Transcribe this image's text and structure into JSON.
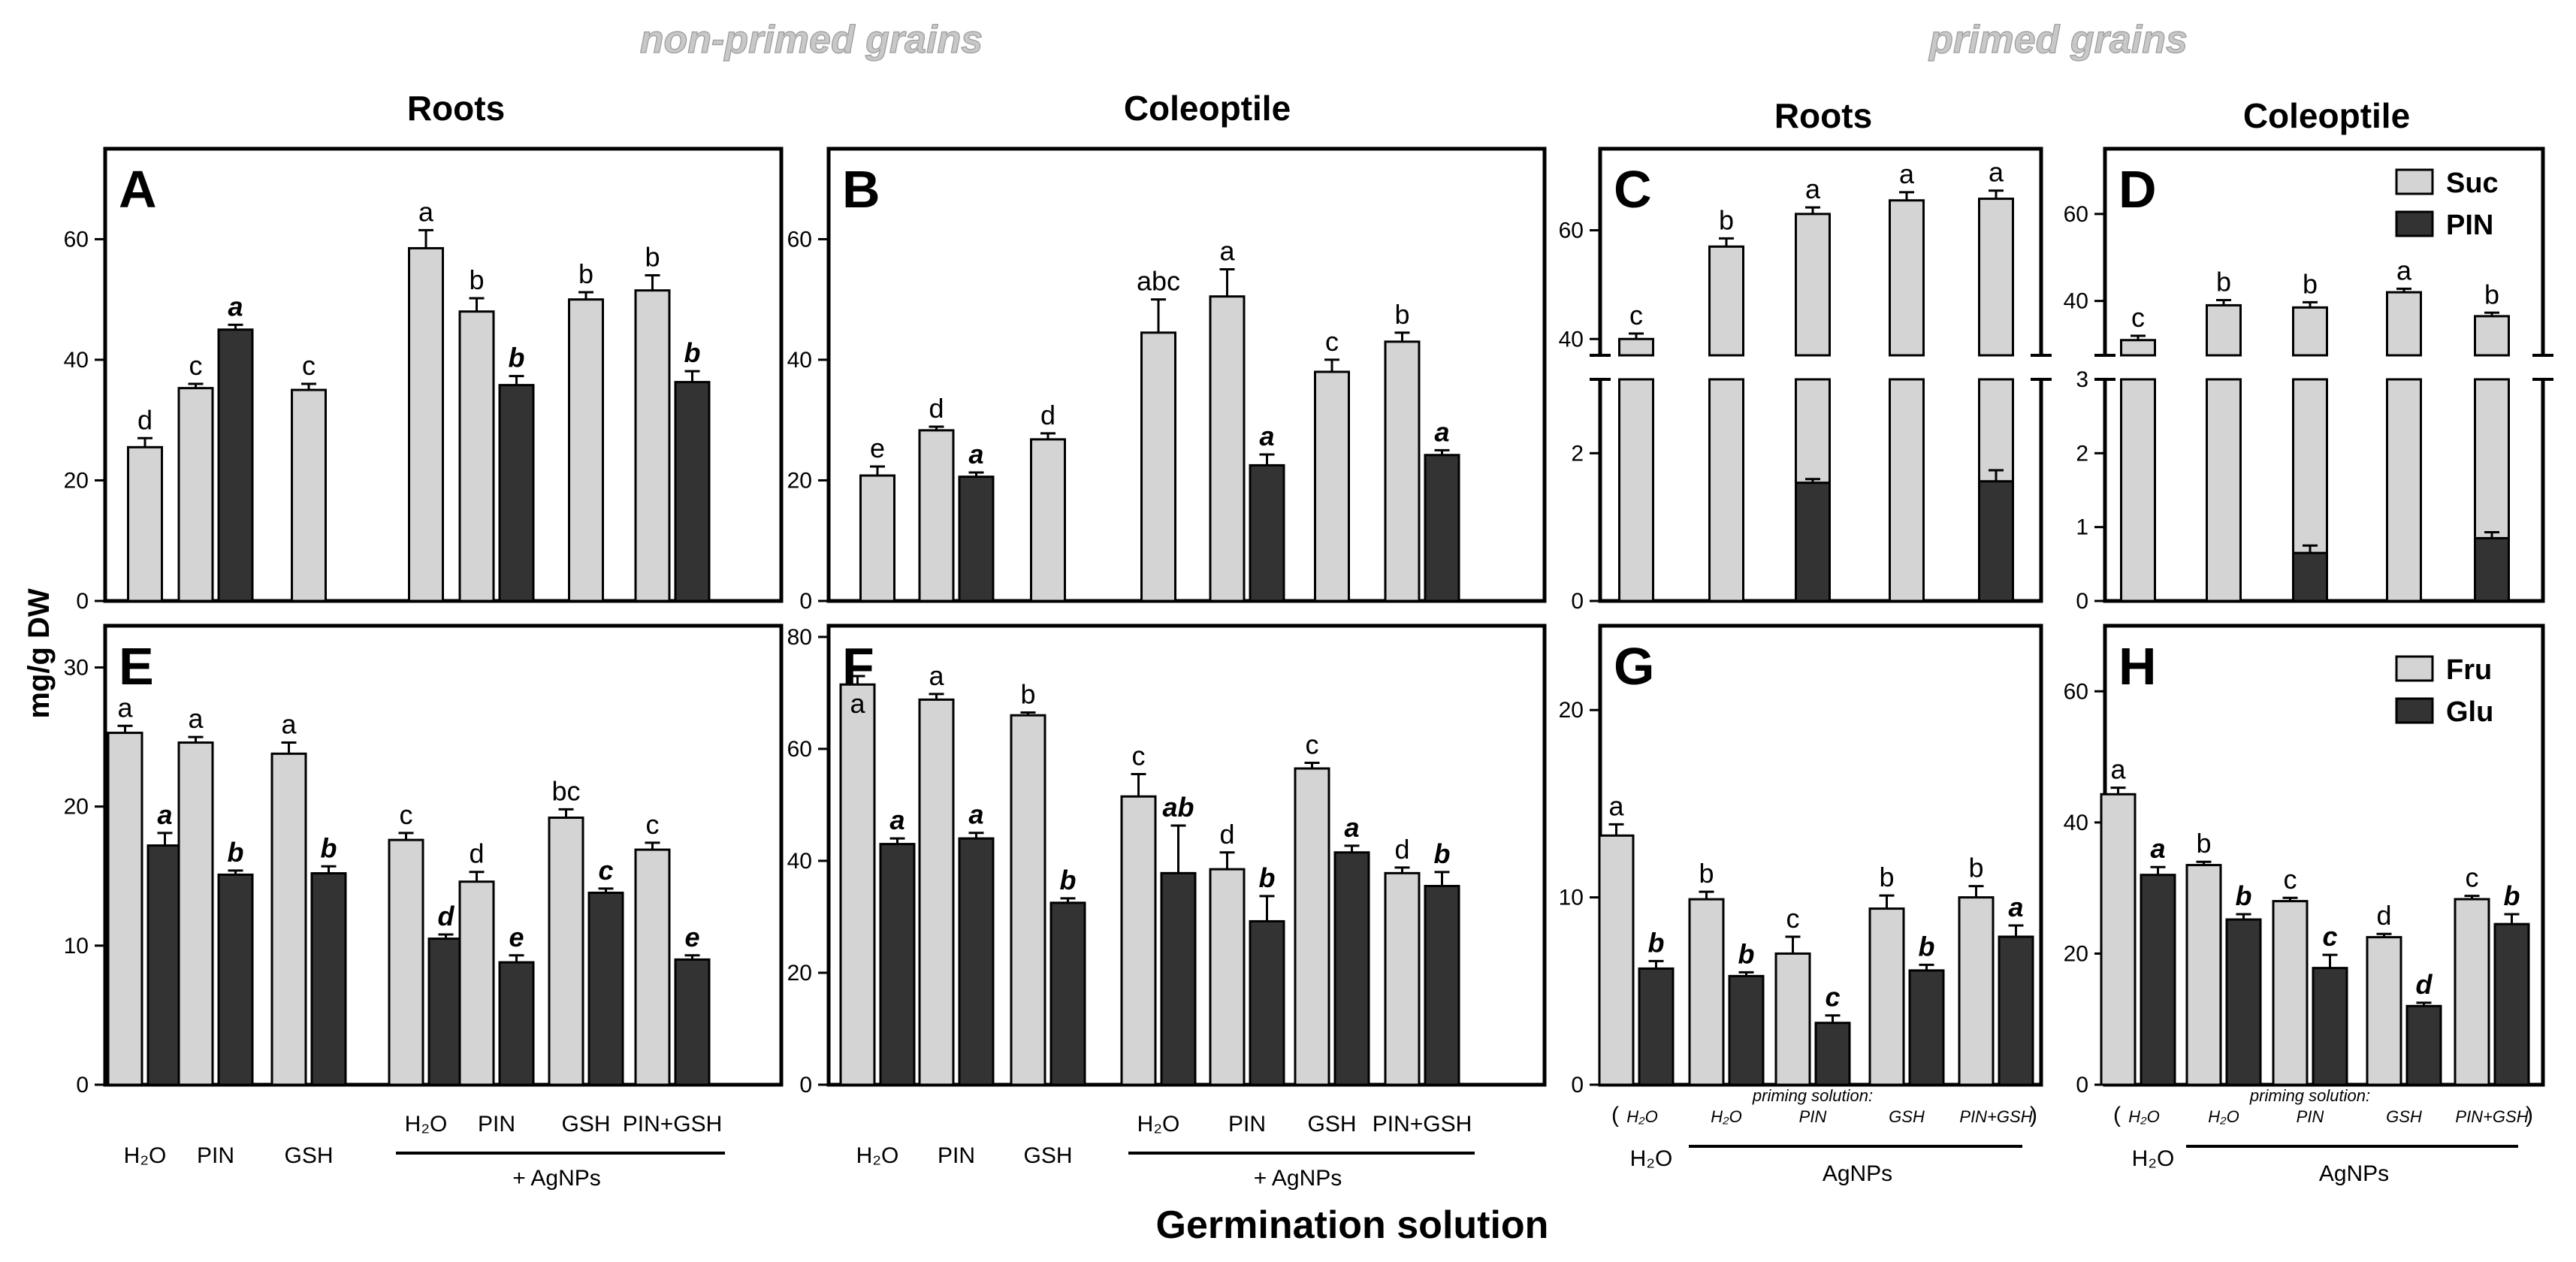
{
  "section_titles": {
    "non_primed": "non-primed grains",
    "primed": "primed grains"
  },
  "column_titles": [
    "Roots",
    "Coleoptile",
    "Roots",
    "Coleoptile"
  ],
  "y_axis_title": "mg/g DW",
  "x_axis_title": "Germination solution",
  "colors": {
    "light": "#d4d4d4",
    "dark": "#333333"
  },
  "categories_np": {
    "bottom": [
      "H₂O",
      "PIN",
      "GSH",
      "H₂O",
      "PIN",
      "GSH",
      "PIN+GSH"
    ],
    "agnps_label": "+ AgNPs"
  },
  "categories_p": {
    "open_paren": "(",
    "close_paren": ")",
    "h2o_italic": "H₂O",
    "top": [
      "H₂O",
      "PIN",
      "GSH",
      "PIN+GSH"
    ],
    "priming_label": "priming solution:",
    "h2o_label": "H₂O",
    "agnps_label": "AgNPs"
  },
  "legends": {
    "top": [
      "Suc",
      "PIN"
    ],
    "bottom": [
      "Fru",
      "Glu"
    ]
  },
  "chart_data": [
    {
      "panel": "A",
      "type": "bar",
      "title": "Roots",
      "ylabel": "mg/g DW",
      "ylim": [
        0,
        75
      ],
      "yticks": [
        "0",
        "20",
        "40",
        "60"
      ],
      "categories": [
        "H2O",
        "PIN",
        "GSH",
        "H2O + AgNPs",
        "PIN + AgNPs",
        "GSH + AgNPs",
        "PIN+GSH + AgNPs"
      ],
      "series": [
        {
          "name": "Suc",
          "values": [
            25.5,
            35.3,
            35.0,
            58.5,
            48.0,
            50.0,
            51.5
          ],
          "errors": [
            1.5,
            0.7,
            1.0,
            3.0,
            2.2,
            1.2,
            2.5
          ],
          "labels": [
            "d",
            "c",
            "c",
            "a",
            "b",
            "b",
            "b"
          ]
        },
        {
          "name": "PIN",
          "values": [
            null,
            45.0,
            null,
            null,
            35.8,
            null,
            36.3
          ],
          "errors": [
            null,
            0.8,
            null,
            null,
            1.5,
            null,
            1.8
          ],
          "labels": [
            "",
            "a",
            "",
            "",
            "b",
            "",
            "b"
          ]
        }
      ]
    },
    {
      "panel": "B",
      "type": "bar",
      "title": "Coleoptile",
      "ylim": [
        0,
        75
      ],
      "yticks": [
        "0",
        "20",
        "40",
        "60"
      ],
      "categories": [
        "H2O",
        "PIN",
        "GSH",
        "H2O + AgNPs",
        "PIN + AgNPs",
        "GSH + AgNPs",
        "PIN+GSH + AgNPs"
      ],
      "series": [
        {
          "name": "Suc",
          "values": [
            20.8,
            28.3,
            26.8,
            44.5,
            50.5,
            38.0,
            43.0
          ],
          "errors": [
            1.5,
            0.6,
            1.0,
            5.5,
            4.5,
            2.0,
            1.5
          ],
          "labels": [
            "e",
            "d",
            "d",
            "abc",
            "a",
            "c",
            "b"
          ]
        },
        {
          "name": "PIN",
          "values": [
            null,
            20.6,
            null,
            null,
            22.5,
            null,
            24.2
          ],
          "errors": [
            null,
            0.7,
            null,
            null,
            1.8,
            null,
            0.8
          ],
          "labels": [
            "",
            "a",
            "",
            "",
            "a",
            "",
            "a"
          ]
        }
      ]
    },
    {
      "panel": "C",
      "type": "bar",
      "title": "Roots",
      "broken_axis": true,
      "ylim_lower": [
        0,
        3
      ],
      "ylim_upper": [
        37,
        75
      ],
      "yticks_upper": [
        "40",
        "60"
      ],
      "yticks_lower": [
        "0",
        "2"
      ],
      "categories": [
        "H2O",
        "AgNPs (priming H2O)",
        "AgNPs (priming PIN)",
        "AgNPs (priming GSH)",
        "AgNPs (priming PIN+GSH)"
      ],
      "series": [
        {
          "name": "Suc",
          "values": [
            40.0,
            57.0,
            63.0,
            65.5,
            65.8
          ],
          "errors": [
            1.0,
            1.5,
            1.2,
            1.5,
            1.5
          ],
          "labels": [
            "c",
            "b",
            "a",
            "a",
            "a"
          ]
        },
        {
          "name": "PIN",
          "values": [
            null,
            null,
            1.6,
            null,
            1.62
          ],
          "errors": [
            null,
            null,
            0.05,
            null,
            0.15
          ],
          "labels": [
            "",
            "",
            "",
            "",
            ""
          ]
        }
      ]
    },
    {
      "panel": "D",
      "type": "bar",
      "title": "Coleoptile",
      "broken_axis": true,
      "ylim_lower": [
        0,
        3
      ],
      "ylim_upper": [
        27.5,
        75
      ],
      "yticks_upper": [
        "40",
        "60"
      ],
      "yticks_lower": [
        "0",
        "1",
        "2",
        "3"
      ],
      "categories": [
        "H2O",
        "AgNPs (priming H2O)",
        "AgNPs (priming PIN)",
        "AgNPs (priming GSH)",
        "AgNPs (priming PIN+GSH)"
      ],
      "series": [
        {
          "name": "Suc",
          "values": [
            31.0,
            39.0,
            38.5,
            42.0,
            36.5
          ],
          "errors": [
            1.0,
            1.2,
            1.2,
            0.8,
            0.8
          ],
          "labels": [
            "c",
            "b",
            "b",
            "a",
            "b"
          ]
        },
        {
          "name": "PIN",
          "values": [
            null,
            null,
            0.65,
            null,
            0.85
          ],
          "errors": [
            null,
            null,
            0.1,
            null,
            0.08
          ],
          "labels": [
            "",
            "",
            "",
            "",
            ""
          ]
        }
      ]
    },
    {
      "panel": "E",
      "type": "bar",
      "ylim": [
        0,
        33
      ],
      "yticks": [
        "0",
        "10",
        "20",
        "30"
      ],
      "categories": [
        "H2O",
        "PIN",
        "GSH",
        "H2O + AgNPs",
        "PIN + AgNPs",
        "GSH + AgNPs",
        "PIN+GSH + AgNPs"
      ],
      "series": [
        {
          "name": "Fru",
          "values": [
            25.3,
            24.6,
            23.8,
            17.6,
            14.6,
            19.2,
            16.9
          ],
          "errors": [
            0.5,
            0.4,
            0.8,
            0.5,
            0.7,
            0.6,
            0.5
          ],
          "labels": [
            "a",
            "a",
            "a",
            "c",
            "d",
            "bc",
            "c"
          ]
        },
        {
          "name": "Glu",
          "values": [
            17.2,
            15.1,
            15.2,
            10.5,
            8.8,
            13.8,
            9.0
          ],
          "errors": [
            0.9,
            0.3,
            0.5,
            0.3,
            0.5,
            0.3,
            0.3
          ],
          "labels": [
            "a",
            "b",
            "b",
            "d",
            "e",
            "c",
            "e"
          ]
        }
      ]
    },
    {
      "panel": "F",
      "type": "bar",
      "ylim": [
        0,
        82
      ],
      "yticks": [
        "0",
        "20",
        "40",
        "60",
        "80"
      ],
      "categories": [
        "H2O",
        "PIN",
        "GSH",
        "H2O + AgNPs",
        "PIN + AgNPs",
        "GSH + AgNPs",
        "PIN+GSH + AgNPs"
      ],
      "series": [
        {
          "name": "Fru",
          "values": [
            71.5,
            68.8,
            66.0,
            51.5,
            38.5,
            56.5,
            37.8
          ],
          "errors": [
            1.5,
            1.0,
            0.5,
            4.0,
            3.0,
            1.0,
            1.0
          ],
          "labels": [
            "a",
            "a",
            "b",
            "c",
            "d",
            "c",
            "d"
          ]
        },
        {
          "name": "Glu",
          "values": [
            43.0,
            44.0,
            32.5,
            37.8,
            29.2,
            41.5,
            35.5
          ],
          "errors": [
            1.0,
            1.0,
            0.8,
            8.5,
            4.5,
            1.2,
            2.5
          ],
          "labels": [
            "a",
            "a",
            "b",
            "ab",
            "b",
            "a",
            "b"
          ]
        }
      ]
    },
    {
      "panel": "G",
      "type": "bar",
      "ylim": [
        0,
        24.5
      ],
      "yticks": [
        "0",
        "10",
        "20"
      ],
      "categories": [
        "H2O",
        "AgNPs (priming H2O)",
        "AgNPs (priming PIN)",
        "AgNPs (priming GSH)",
        "AgNPs (priming PIN+GSH)"
      ],
      "series": [
        {
          "name": "Fru",
          "values": [
            13.3,
            9.9,
            7.0,
            9.4,
            10.0
          ],
          "errors": [
            0.6,
            0.4,
            0.9,
            0.7,
            0.6
          ],
          "labels": [
            "a",
            "b",
            "c",
            "b",
            "b"
          ]
        },
        {
          "name": "Glu",
          "values": [
            6.2,
            5.8,
            3.3,
            6.1,
            7.9
          ],
          "errors": [
            0.4,
            0.2,
            0.4,
            0.3,
            0.6
          ],
          "labels": [
            "b",
            "b",
            "c",
            "b",
            "a"
          ]
        }
      ]
    },
    {
      "panel": "H",
      "type": "bar",
      "ylim": [
        0,
        70
      ],
      "yticks": [
        "0",
        "20",
        "40",
        "60"
      ],
      "categories": [
        "H2O",
        "AgNPs (priming H2O)",
        "AgNPs (priming PIN)",
        "AgNPs (priming GSH)",
        "AgNPs (priming PIN+GSH)"
      ],
      "series": [
        {
          "name": "Fru",
          "values": [
            44.3,
            33.5,
            28.0,
            22.5,
            28.3
          ],
          "errors": [
            1.0,
            0.5,
            0.5,
            0.5,
            0.5
          ],
          "labels": [
            "a",
            "b",
            "c",
            "d",
            "c"
          ]
        },
        {
          "name": "Glu",
          "values": [
            32.0,
            25.2,
            17.8,
            12.0,
            24.5
          ],
          "errors": [
            1.2,
            0.8,
            2.0,
            0.5,
            1.5
          ],
          "labels": [
            "a",
            "b",
            "c",
            "d",
            "b"
          ]
        }
      ]
    }
  ]
}
